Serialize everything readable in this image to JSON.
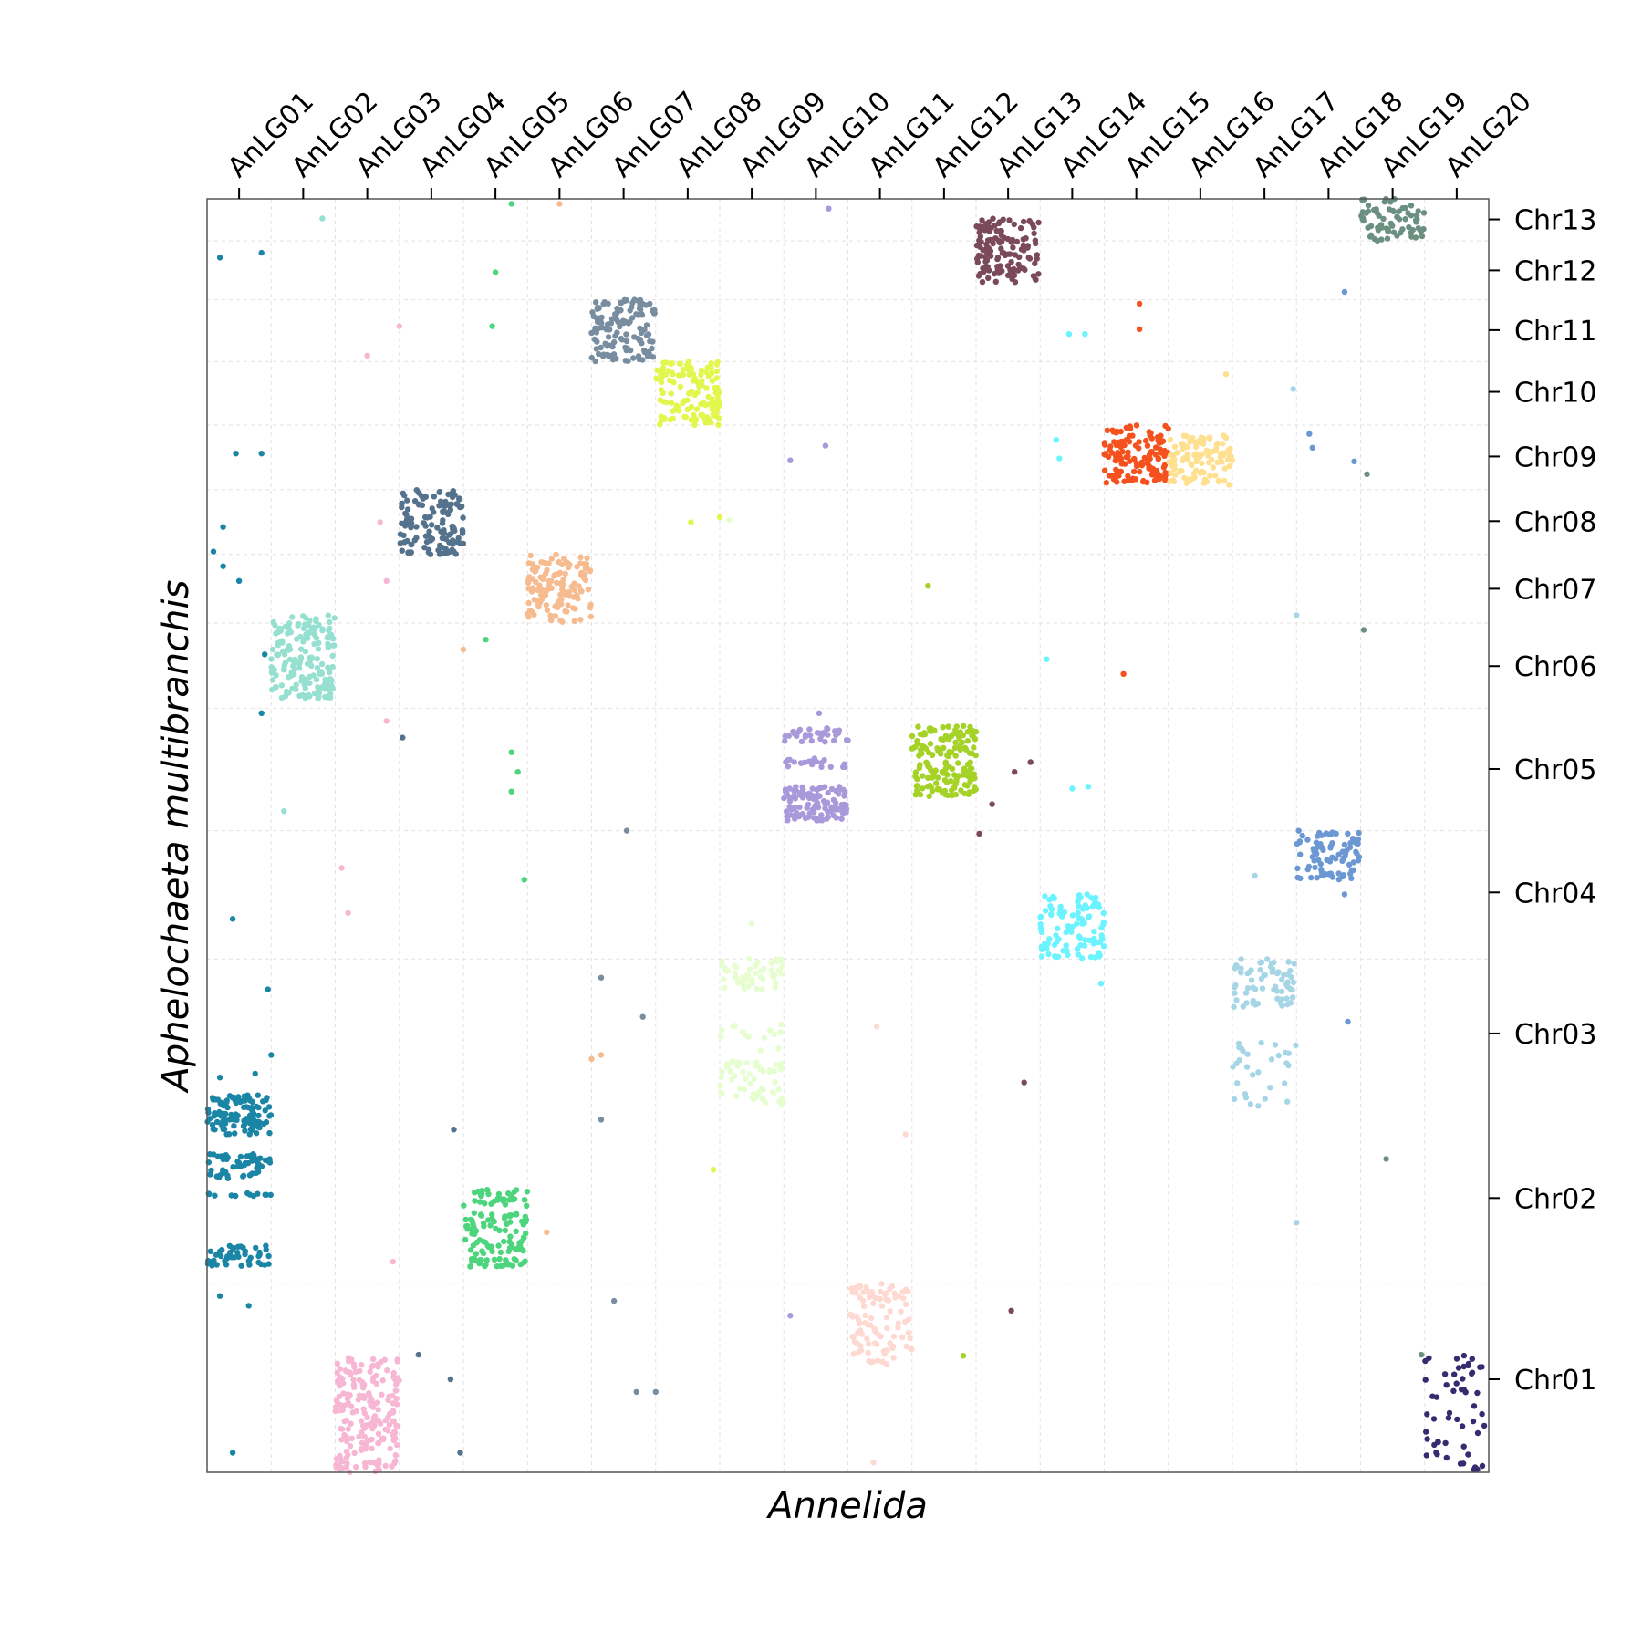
{
  "chart_data": {
    "type": "scatter",
    "title": "",
    "xlabel": "Annelida",
    "ylabel": "Aphelochaeta multibranchis",
    "x_axis_position": "top",
    "y_axis_position": "right",
    "grid": true,
    "xlim": [
      0,
      20
    ],
    "ylim": [
      0,
      13
    ],
    "x_categories": [
      "AnLG01",
      "AnLG02",
      "AnLG03",
      "AnLG04",
      "AnLG05",
      "AnLG06",
      "AnLG07",
      "AnLG08",
      "AnLG09",
      "AnLG10",
      "AnLG11",
      "AnLG12",
      "AnLG13",
      "AnLG14",
      "AnLG15",
      "AnLG16",
      "AnLG17",
      "AnLG18",
      "AnLG19",
      "AnLG20"
    ],
    "x_ticks": [
      0.5,
      1.5,
      2.5,
      3.5,
      4.5,
      5.5,
      6.5,
      7.5,
      8.5,
      9.5,
      10.5,
      11.5,
      12.5,
      13.5,
      14.5,
      15.5,
      16.5,
      17.5,
      18.5,
      19.5
    ],
    "x_gridlines": [
      1,
      2,
      3,
      4,
      5,
      6,
      7,
      8,
      9,
      10,
      11,
      12,
      13,
      14,
      15,
      16,
      17,
      18,
      19
    ],
    "y_categories": [
      "Chr01",
      "Chr02",
      "Chr03",
      "Chr04",
      "Chr05",
      "Chr06",
      "Chr07",
      "Chr08",
      "Chr09",
      "Chr10",
      "Chr11",
      "Chr12",
      "Chr13"
    ],
    "y_ticks": [
      0.95,
      2.8,
      4.48,
      5.92,
      7.18,
      8.23,
      9.02,
      9.71,
      10.37,
      11.03,
      11.66,
      12.27,
      12.79
    ],
    "y_gridlines": [
      1.93,
      3.73,
      5.24,
      6.55,
      7.8,
      8.67,
      9.37,
      10.03,
      10.69,
      11.34,
      11.97,
      12.57
    ],
    "clusters": [
      {
        "x": [
          0,
          1
        ],
        "y": [
          3.45,
          3.85
        ],
        "n": 110,
        "color": "#1B85A5"
      },
      {
        "x": [
          0,
          1
        ],
        "y": [
          3.0,
          3.25
        ],
        "n": 55,
        "color": "#1B85A5"
      },
      {
        "x": [
          0,
          1
        ],
        "y": [
          2.82,
          2.85
        ],
        "n": 12,
        "color": "#1B85A5"
      },
      {
        "x": [
          0,
          1
        ],
        "y": [
          2.1,
          2.32
        ],
        "n": 45,
        "color": "#1B85A5"
      },
      {
        "x": [
          1,
          2
        ],
        "y": [
          7.9,
          8.75
        ],
        "n": 170,
        "color": "#96E0D1"
      },
      {
        "x": [
          2,
          3
        ],
        "y": [
          0,
          1.2
        ],
        "n": 200,
        "color": "#F7B6D3"
      },
      {
        "x": [
          3,
          4
        ],
        "y": [
          9.37,
          10.03
        ],
        "n": 130,
        "color": "#55728D"
      },
      {
        "x": [
          4,
          5
        ],
        "y": [
          2.72,
          2.9
        ],
        "n": 35,
        "color": "#4CD57C"
      },
      {
        "x": [
          4,
          5
        ],
        "y": [
          2.1,
          2.65
        ],
        "n": 110,
        "color": "#4CD57C"
      },
      {
        "x": [
          5,
          6
        ],
        "y": [
          8.67,
          9.37
        ],
        "n": 130,
        "color": "#F6BB8E"
      },
      {
        "x": [
          6,
          7
        ],
        "y": [
          11.34,
          11.97
        ],
        "n": 130,
        "color": "#788DA0"
      },
      {
        "x": [
          7,
          8
        ],
        "y": [
          10.69,
          11.34
        ],
        "n": 130,
        "color": "#E3F64D"
      },
      {
        "x": [
          8,
          9
        ],
        "y": [
          4.9,
          5.25
        ],
        "n": 50,
        "color": "#E6FDCF"
      },
      {
        "x": [
          8,
          9
        ],
        "y": [
          4.3,
          4.6
        ],
        "n": 15,
        "color": "#E6FDCF"
      },
      {
        "x": [
          8,
          9
        ],
        "y": [
          3.75,
          4.2
        ],
        "n": 60,
        "color": "#E6FDCF"
      },
      {
        "x": [
          9,
          10
        ],
        "y": [
          7.45,
          7.6
        ],
        "n": 35,
        "color": "#A89ADA"
      },
      {
        "x": [
          9,
          10
        ],
        "y": [
          7.2,
          7.3
        ],
        "n": 20,
        "color": "#A89ADA"
      },
      {
        "x": [
          9,
          10
        ],
        "y": [
          6.65,
          7.0
        ],
        "n": 110,
        "color": "#A89ADA"
      },
      {
        "x": [
          10,
          11
        ],
        "y": [
          1.1,
          1.93
        ],
        "n": 100,
        "color": "#FDD9D2"
      },
      {
        "x": [
          11,
          12
        ],
        "y": [
          7.3,
          7.62
        ],
        "n": 80,
        "color": "#A5D226"
      },
      {
        "x": [
          11,
          12
        ],
        "y": [
          6.9,
          7.25
        ],
        "n": 90,
        "color": "#A5D226"
      },
      {
        "x": [
          12,
          13
        ],
        "y": [
          12.15,
          12.8
        ],
        "n": 130,
        "color": "#7A4A5A"
      },
      {
        "x": [
          13,
          14
        ],
        "y": [
          5.24,
          5.9
        ],
        "n": 110,
        "color": "#6BF4FF"
      },
      {
        "x": [
          14,
          15
        ],
        "y": [
          10.1,
          10.69
        ],
        "n": 130,
        "color": "#F4511E"
      },
      {
        "x": [
          15,
          16
        ],
        "y": [
          10.08,
          10.59
        ],
        "n": 110,
        "color": "#FEE08F"
      },
      {
        "x": [
          16,
          17
        ],
        "y": [
          4.75,
          5.24
        ],
        "n": 70,
        "color": "#A6D6E6"
      },
      {
        "x": [
          16,
          17
        ],
        "y": [
          4.05,
          4.4
        ],
        "n": 20,
        "color": "#A6D6E6"
      },
      {
        "x": [
          16,
          17
        ],
        "y": [
          3.74,
          3.98
        ],
        "n": 10,
        "color": "#A6D6E6"
      },
      {
        "x": [
          17,
          18
        ],
        "y": [
          6.05,
          6.55
        ],
        "n": 85,
        "color": "#6B97D2"
      },
      {
        "x": [
          18,
          19
        ],
        "y": [
          12.57,
          13.0
        ],
        "n": 70,
        "color": "#6B8F80"
      },
      {
        "x": [
          19,
          20
        ],
        "y": [
          0,
          1.2
        ],
        "n": 55,
        "color": "#372A6F"
      }
    ],
    "scattered_points": [
      {
        "x": 0.2,
        "y": 12.4,
        "color": "#1B85A5"
      },
      {
        "x": 0.85,
        "y": 12.45,
        "color": "#1B85A5"
      },
      {
        "x": 0.45,
        "y": 10.4,
        "color": "#1B85A5"
      },
      {
        "x": 0.85,
        "y": 10.4,
        "color": "#1B85A5"
      },
      {
        "x": 0.25,
        "y": 9.65,
        "color": "#1B85A5"
      },
      {
        "x": 0.1,
        "y": 9.4,
        "color": "#1B85A5"
      },
      {
        "x": 0.25,
        "y": 9.25,
        "color": "#1B85A5"
      },
      {
        "x": 0.5,
        "y": 9.1,
        "color": "#1B85A5"
      },
      {
        "x": 0.9,
        "y": 8.35,
        "color": "#1B85A5"
      },
      {
        "x": 0.85,
        "y": 7.75,
        "color": "#1B85A5"
      },
      {
        "x": 0.4,
        "y": 5.65,
        "color": "#1B85A5"
      },
      {
        "x": 0.95,
        "y": 4.93,
        "color": "#1B85A5"
      },
      {
        "x": 0.2,
        "y": 4.03,
        "color": "#1B85A5"
      },
      {
        "x": 0.75,
        "y": 4.07,
        "color": "#1B85A5"
      },
      {
        "x": 1.0,
        "y": 4.26,
        "color": "#1B85A5"
      },
      {
        "x": 0.2,
        "y": 1.8,
        "color": "#1B85A5"
      },
      {
        "x": 0.65,
        "y": 1.7,
        "color": "#1B85A5"
      },
      {
        "x": 0.4,
        "y": 0.2,
        "color": "#1B85A5"
      },
      {
        "x": 1.8,
        "y": 12.8,
        "color": "#96E0D1"
      },
      {
        "x": 1.2,
        "y": 6.75,
        "color": "#96E0D1"
      },
      {
        "x": 3.0,
        "y": 11.7,
        "color": "#F7B6D3"
      },
      {
        "x": 2.5,
        "y": 11.4,
        "color": "#F7B6D3"
      },
      {
        "x": 2.7,
        "y": 9.7,
        "color": "#F7B6D3"
      },
      {
        "x": 2.8,
        "y": 9.1,
        "color": "#F7B6D3"
      },
      {
        "x": 2.8,
        "y": 7.67,
        "color": "#F7B6D3"
      },
      {
        "x": 2.1,
        "y": 6.17,
        "color": "#F7B6D3"
      },
      {
        "x": 2.2,
        "y": 5.71,
        "color": "#F7B6D3"
      },
      {
        "x": 2.9,
        "y": 2.15,
        "color": "#F7B6D3"
      },
      {
        "x": 3.05,
        "y": 7.5,
        "color": "#55728D"
      },
      {
        "x": 3.3,
        "y": 1.2,
        "color": "#55728D"
      },
      {
        "x": 3.8,
        "y": 0.95,
        "color": "#55728D"
      },
      {
        "x": 3.85,
        "y": 3.5,
        "color": "#55728D"
      },
      {
        "x": 3.95,
        "y": 0.2,
        "color": "#55728D"
      },
      {
        "x": 4.75,
        "y": 12.95,
        "color": "#4CD57C"
      },
      {
        "x": 4.5,
        "y": 12.25,
        "color": "#4CD57C"
      },
      {
        "x": 4.45,
        "y": 11.7,
        "color": "#4CD57C"
      },
      {
        "x": 4.35,
        "y": 8.5,
        "color": "#4CD57C"
      },
      {
        "x": 4.75,
        "y": 7.35,
        "color": "#4CD57C"
      },
      {
        "x": 4.85,
        "y": 7.15,
        "color": "#4CD57C"
      },
      {
        "x": 4.75,
        "y": 6.95,
        "color": "#4CD57C"
      },
      {
        "x": 4.95,
        "y": 6.05,
        "color": "#4CD57C"
      },
      {
        "x": 5.3,
        "y": 2.45,
        "color": "#F6BB8E"
      },
      {
        "x": 4.0,
        "y": 8.4,
        "color": "#F6BB8E"
      },
      {
        "x": 5.5,
        "y": 12.95,
        "color": "#F6BB8E"
      },
      {
        "x": 6.0,
        "y": 4.22,
        "color": "#F6BB8E"
      },
      {
        "x": 6.15,
        "y": 4.26,
        "color": "#F6BB8E"
      },
      {
        "x": 6.55,
        "y": 6.55,
        "color": "#788DA0"
      },
      {
        "x": 6.15,
        "y": 5.05,
        "color": "#788DA0"
      },
      {
        "x": 6.8,
        "y": 4.65,
        "color": "#788DA0"
      },
      {
        "x": 6.15,
        "y": 3.6,
        "color": "#788DA0"
      },
      {
        "x": 6.35,
        "y": 1.75,
        "color": "#788DA0"
      },
      {
        "x": 6.7,
        "y": 0.82,
        "color": "#788DA0"
      },
      {
        "x": 7.0,
        "y": 0.82,
        "color": "#788DA0"
      },
      {
        "x": 7.55,
        "y": 9.7,
        "color": "#E3F64D"
      },
      {
        "x": 8.0,
        "y": 9.75,
        "color": "#E3F64D"
      },
      {
        "x": 7.9,
        "y": 3.09,
        "color": "#E3F64D"
      },
      {
        "x": 8.15,
        "y": 9.72,
        "color": "#E6FDCF"
      },
      {
        "x": 8.5,
        "y": 5.6,
        "color": "#E6FDCF"
      },
      {
        "x": 9.1,
        "y": 10.33,
        "color": "#A89ADA"
      },
      {
        "x": 9.65,
        "y": 10.48,
        "color": "#A89ADA"
      },
      {
        "x": 9.55,
        "y": 7.75,
        "color": "#A89ADA"
      },
      {
        "x": 9.7,
        "y": 12.9,
        "color": "#A89ADA"
      },
      {
        "x": 9.1,
        "y": 1.6,
        "color": "#A89ADA"
      },
      {
        "x": 10.45,
        "y": 4.55,
        "color": "#FDD9D2"
      },
      {
        "x": 10.9,
        "y": 3.45,
        "color": "#FDD9D2"
      },
      {
        "x": 10.4,
        "y": 0.1,
        "color": "#FDD9D2"
      },
      {
        "x": 11.25,
        "y": 9.05,
        "color": "#A5D226"
      },
      {
        "x": 11.8,
        "y": 1.19,
        "color": "#A5D226"
      },
      {
        "x": 12.6,
        "y": 7.15,
        "color": "#7A4A5A"
      },
      {
        "x": 12.85,
        "y": 7.25,
        "color": "#7A4A5A"
      },
      {
        "x": 12.25,
        "y": 6.82,
        "color": "#7A4A5A"
      },
      {
        "x": 12.05,
        "y": 6.52,
        "color": "#7A4A5A"
      },
      {
        "x": 12.75,
        "y": 3.98,
        "color": "#7A4A5A"
      },
      {
        "x": 12.55,
        "y": 1.65,
        "color": "#7A4A5A"
      },
      {
        "x": 13.1,
        "y": 8.3,
        "color": "#6BF4FF"
      },
      {
        "x": 13.45,
        "y": 11.62,
        "color": "#6BF4FF"
      },
      {
        "x": 13.7,
        "y": 11.62,
        "color": "#6BF4FF"
      },
      {
        "x": 13.25,
        "y": 10.54,
        "color": "#6BF4FF"
      },
      {
        "x": 13.3,
        "y": 10.35,
        "color": "#6BF4FF"
      },
      {
        "x": 13.5,
        "y": 6.98,
        "color": "#6BF4FF"
      },
      {
        "x": 13.75,
        "y": 7.0,
        "color": "#6BF4FF"
      },
      {
        "x": 13.95,
        "y": 4.99,
        "color": "#6BF4FF"
      },
      {
        "x": 14.55,
        "y": 11.93,
        "color": "#F4511E"
      },
      {
        "x": 14.55,
        "y": 11.67,
        "color": "#F4511E"
      },
      {
        "x": 14.3,
        "y": 8.15,
        "color": "#F4511E"
      },
      {
        "x": 15.9,
        "y": 11.21,
        "color": "#FEE08F"
      },
      {
        "x": 16.35,
        "y": 6.09,
        "color": "#A6D6E6"
      },
      {
        "x": 16.95,
        "y": 11.06,
        "color": "#A6D6E6"
      },
      {
        "x": 17.0,
        "y": 8.75,
        "color": "#A6D6E6"
      },
      {
        "x": 17.0,
        "y": 2.55,
        "color": "#A6D6E6"
      },
      {
        "x": 17.2,
        "y": 10.6,
        "color": "#6B97D2"
      },
      {
        "x": 17.25,
        "y": 10.46,
        "color": "#6B97D2"
      },
      {
        "x": 17.75,
        "y": 12.05,
        "color": "#6B97D2"
      },
      {
        "x": 17.9,
        "y": 10.32,
        "color": "#6B97D2"
      },
      {
        "x": 17.75,
        "y": 5.9,
        "color": "#6B97D2"
      },
      {
        "x": 17.8,
        "y": 4.6,
        "color": "#6B97D2"
      },
      {
        "x": 18.1,
        "y": 10.19,
        "color": "#6B8F80"
      },
      {
        "x": 18.05,
        "y": 8.6,
        "color": "#6B8F80"
      },
      {
        "x": 18.4,
        "y": 3.2,
        "color": "#6B8F80"
      },
      {
        "x": 18.95,
        "y": 1.2,
        "color": "#6B8F80"
      }
    ]
  }
}
